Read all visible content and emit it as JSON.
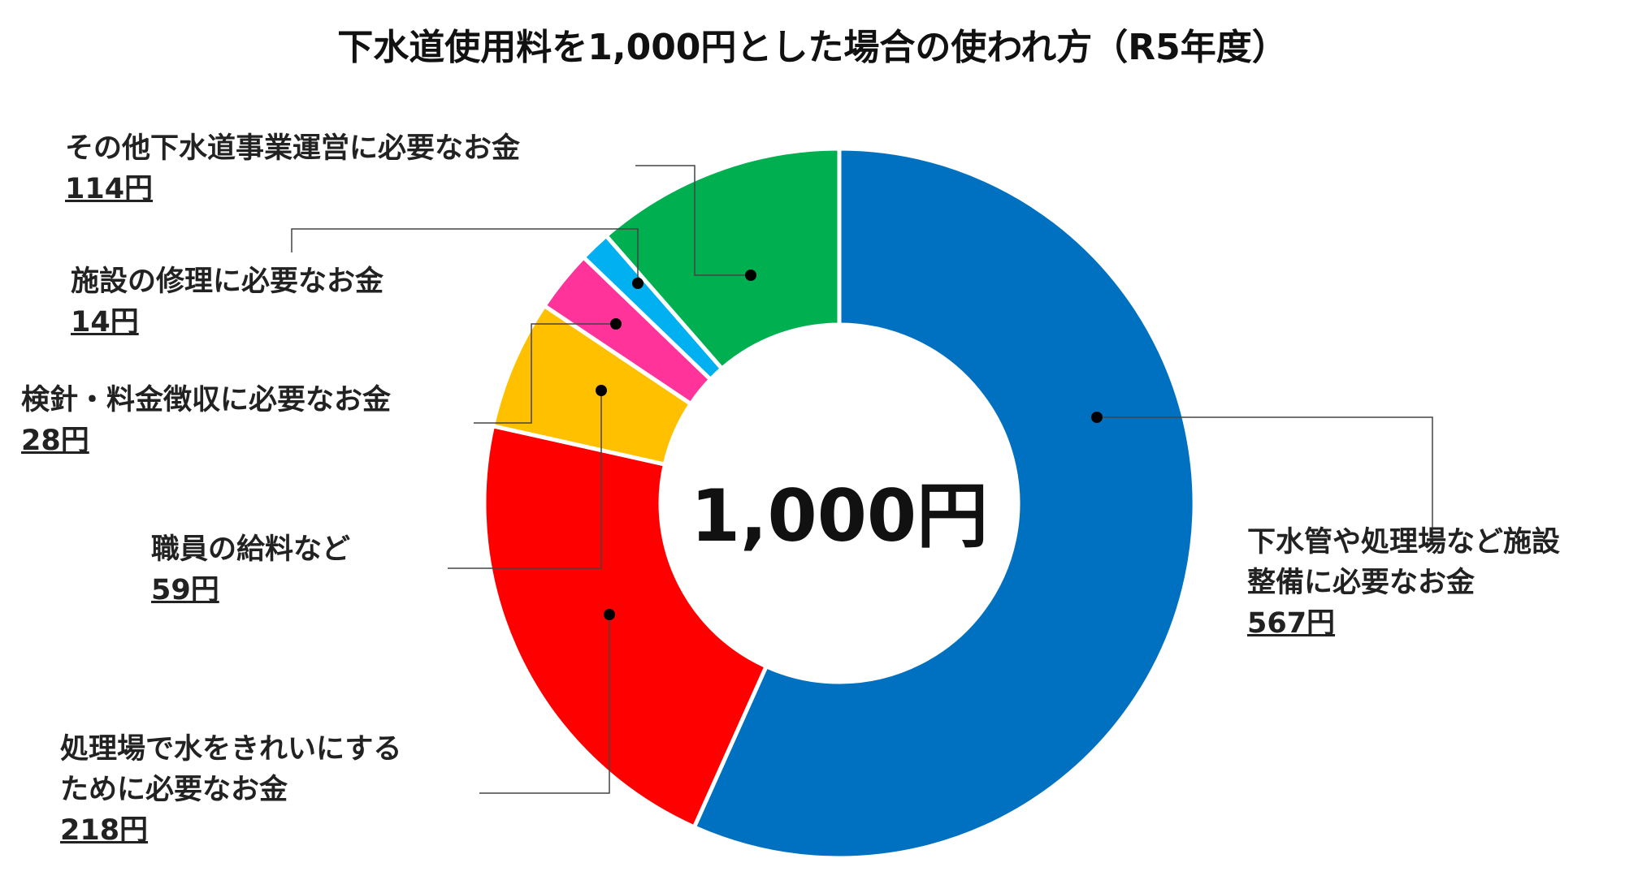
{
  "chart_data": {
    "type": "donut",
    "title": "下水道使用料を1,000円とした場合の使われ方（R5年度）",
    "center_label": "1,000円",
    "categories": [
      "下水管や処理場など施設\n整備に必要なお金",
      "処理場で水をきれいにする\nために必要なお金",
      "職員の給料など",
      "検針・料金徴収に必要なお金",
      "施設の修理に必要なお金",
      "その他下水道事業運営に必要なお金"
    ],
    "values": [
      567,
      218,
      59,
      28,
      14,
      114
    ],
    "value_labels": [
      "567円",
      "218円",
      "59円",
      "28円",
      "14円",
      "114円"
    ],
    "colors": [
      "#0070c0",
      "#ff0000",
      "#ffc000",
      "#ff3399",
      "#00b0f0",
      "#00b050"
    ]
  }
}
